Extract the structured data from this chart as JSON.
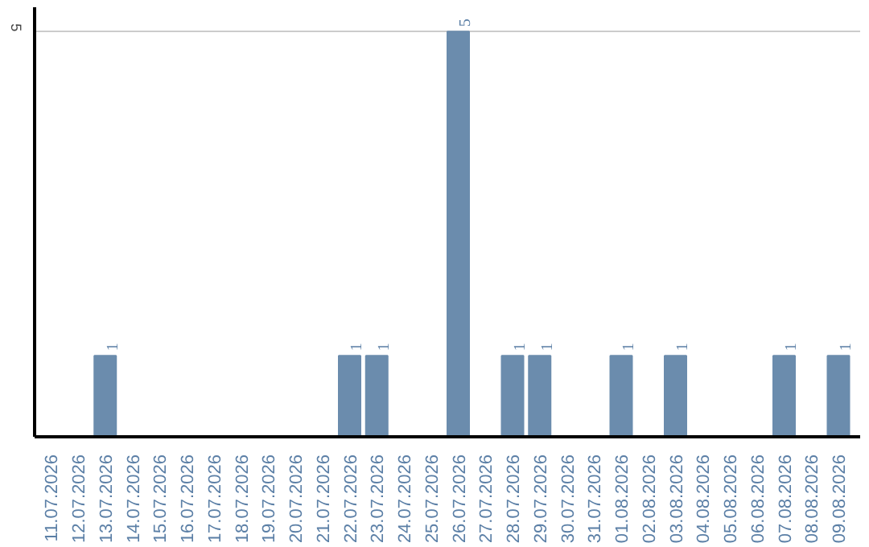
{
  "chart_data": {
    "type": "bar",
    "categories": [
      "11.07.2026",
      "12.07.2026",
      "13.07.2026",
      "14.07.2026",
      "15.07.2026",
      "16.07.2026",
      "17.07.2026",
      "18.07.2026",
      "19.07.2026",
      "20.07.2026",
      "21.07.2026",
      "22.07.2026",
      "23.07.2026",
      "24.07.2026",
      "25.07.2026",
      "26.07.2026",
      "27.07.2026",
      "28.07.2026",
      "29.07.2026",
      "30.07.2026",
      "31.07.2026",
      "01.08.2026",
      "02.08.2026",
      "03.08.2026",
      "04.08.2026",
      "05.08.2026",
      "06.08.2026",
      "07.08.2026",
      "08.08.2026",
      "09.08.2026"
    ],
    "values": [
      0,
      0,
      1,
      0,
      0,
      0,
      0,
      0,
      0,
      0,
      0,
      1,
      1,
      0,
      0,
      5,
      0,
      1,
      1,
      0,
      0,
      1,
      0,
      1,
      0,
      0,
      0,
      1,
      0,
      1
    ],
    "value_labels": [
      null,
      null,
      "1",
      null,
      null,
      null,
      null,
      null,
      null,
      null,
      null,
      "1",
      "1",
      null,
      null,
      "5",
      null,
      "1",
      "1",
      null,
      null,
      "1",
      null,
      "1",
      null,
      null,
      null,
      "1",
      null,
      "1"
    ],
    "color": "#6b8cad",
    "ylim": [
      0,
      5.3
    ],
    "yticks": [
      5
    ],
    "grid": "y"
  }
}
